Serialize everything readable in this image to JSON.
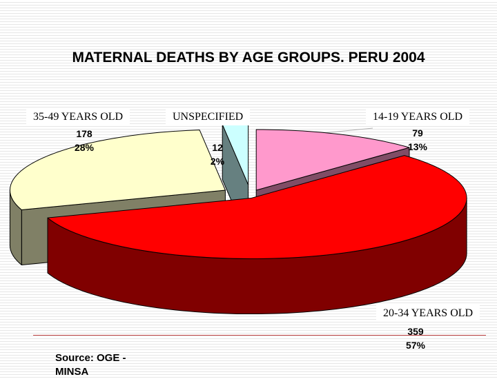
{
  "chart_data": {
    "type": "pie",
    "title": "MATERNAL DEATHS BY AGE GROUPS. PERU 2004",
    "categories": [
      "14-19 YEARS OLD",
      "20-34 YEARS OLD",
      "35-49 YEARS OLD",
      "UNSPECIFIED"
    ],
    "values": [
      79,
      359,
      178,
      12
    ],
    "percent_labels": [
      "13%",
      "57%",
      "28%",
      "2%"
    ],
    "colors": [
      "#ff99cc",
      "#ff0000",
      "#ffffcc",
      "#ccffff"
    ],
    "side_colors": [
      "#804d66",
      "#800000",
      "#808066",
      "#668080"
    ]
  },
  "source": "Source: OGE - MINSA"
}
